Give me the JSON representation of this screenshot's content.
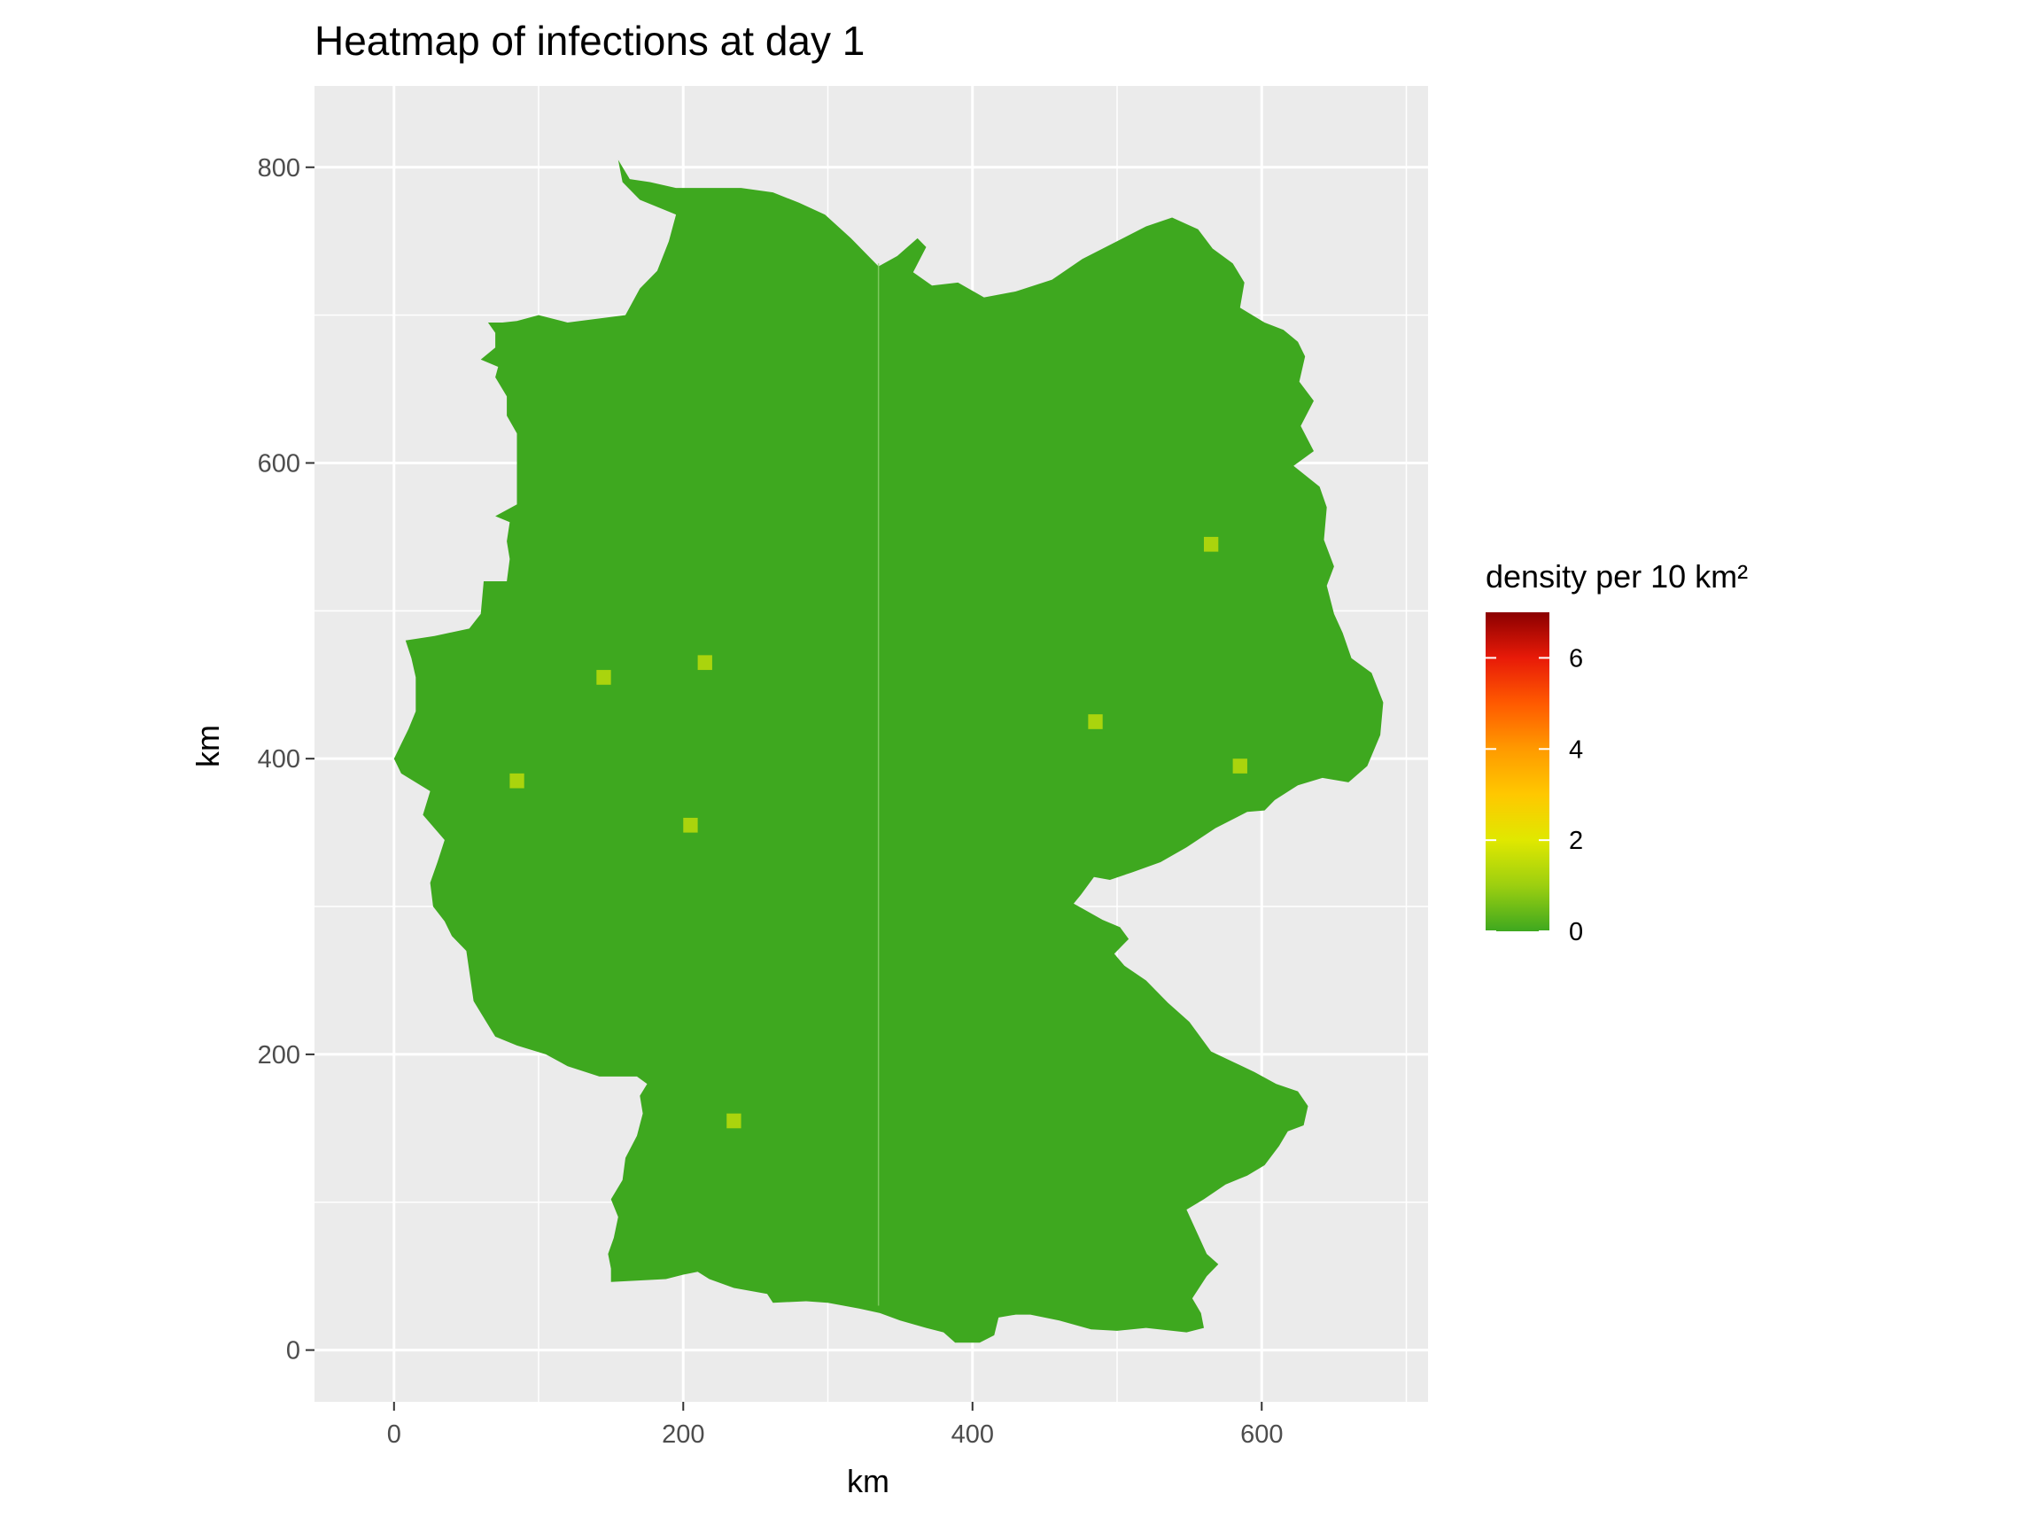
{
  "chart_data": {
    "type": "heatmap",
    "title": "Heatmap of infections at day 1",
    "xlabel": "km",
    "ylabel": "km",
    "xlim": [
      -55,
      715
    ],
    "ylim": [
      -35,
      855
    ],
    "x_ticks": [
      0,
      200,
      400,
      600
    ],
    "y_ticks": [
      0,
      200,
      400,
      600,
      800
    ],
    "x_minor": [
      100,
      300,
      500,
      700
    ],
    "y_minor": [
      100,
      300,
      500,
      700
    ],
    "grid": true,
    "background_color": "#ebebeb",
    "grid_color": "#ffffff",
    "base_color": "#3ea81f",
    "region_outline": [
      [
        155,
        805
      ],
      [
        163,
        792
      ],
      [
        177,
        790
      ],
      [
        195,
        786
      ],
      [
        240,
        786
      ],
      [
        262,
        783
      ],
      [
        280,
        776
      ],
      [
        298,
        768
      ],
      [
        316,
        752
      ],
      [
        335,
        733
      ],
      [
        348,
        740
      ],
      [
        362,
        752
      ],
      [
        368,
        746
      ],
      [
        359,
        729
      ],
      [
        372,
        720
      ],
      [
        390,
        722
      ],
      [
        408,
        712
      ],
      [
        430,
        716
      ],
      [
        455,
        724
      ],
      [
        476,
        738
      ],
      [
        500,
        750
      ],
      [
        520,
        760
      ],
      [
        538,
        766
      ],
      [
        556,
        758
      ],
      [
        566,
        745
      ],
      [
        580,
        735
      ],
      [
        588,
        722
      ],
      [
        585,
        705
      ],
      [
        602,
        695
      ],
      [
        615,
        690
      ],
      [
        625,
        682
      ],
      [
        630,
        672
      ],
      [
        626,
        655
      ],
      [
        636,
        642
      ],
      [
        627,
        625
      ],
      [
        636,
        608
      ],
      [
        622,
        598
      ],
      [
        640,
        584
      ],
      [
        645,
        570
      ],
      [
        643,
        548
      ],
      [
        650,
        530
      ],
      [
        645,
        517
      ],
      [
        650,
        498
      ],
      [
        656,
        485
      ],
      [
        662,
        468
      ],
      [
        676,
        458
      ],
      [
        684,
        438
      ],
      [
        682,
        416
      ],
      [
        673,
        395
      ],
      [
        660,
        384
      ],
      [
        642,
        387
      ],
      [
        625,
        382
      ],
      [
        609,
        372
      ],
      [
        602,
        365
      ],
      [
        590,
        364
      ],
      [
        568,
        353
      ],
      [
        548,
        340
      ],
      [
        530,
        330
      ],
      [
        510,
        323
      ],
      [
        495,
        318
      ],
      [
        484,
        320
      ],
      [
        475,
        308
      ],
      [
        470,
        302
      ],
      [
        490,
        291
      ],
      [
        502,
        286
      ],
      [
        508,
        278
      ],
      [
        498,
        268
      ],
      [
        505,
        260
      ],
      [
        520,
        250
      ],
      [
        535,
        235
      ],
      [
        550,
        222
      ],
      [
        565,
        202
      ],
      [
        580,
        195
      ],
      [
        595,
        188
      ],
      [
        610,
        180
      ],
      [
        625,
        175
      ],
      [
        632,
        165
      ],
      [
        629,
        152
      ],
      [
        618,
        148
      ],
      [
        612,
        138
      ],
      [
        602,
        125
      ],
      [
        590,
        118
      ],
      [
        575,
        112
      ],
      [
        560,
        102
      ],
      [
        548,
        95
      ],
      [
        555,
        80
      ],
      [
        562,
        65
      ],
      [
        570,
        58
      ],
      [
        562,
        50
      ],
      [
        552,
        35
      ],
      [
        558,
        25
      ],
      [
        560,
        15
      ],
      [
        548,
        12
      ],
      [
        520,
        15
      ],
      [
        500,
        13
      ],
      [
        482,
        14
      ],
      [
        460,
        20
      ],
      [
        440,
        24
      ],
      [
        430,
        24
      ],
      [
        418,
        22
      ],
      [
        415,
        10
      ],
      [
        405,
        5
      ],
      [
        388,
        5
      ],
      [
        380,
        12
      ],
      [
        368,
        15
      ],
      [
        350,
        20
      ],
      [
        336,
        25
      ],
      [
        322,
        28
      ],
      [
        300,
        32
      ],
      [
        285,
        33
      ],
      [
        262,
        32
      ],
      [
        258,
        38
      ],
      [
        235,
        42
      ],
      [
        218,
        48
      ],
      [
        210,
        53
      ],
      [
        200,
        51
      ],
      [
        188,
        48
      ],
      [
        150,
        46
      ],
      [
        150,
        55
      ],
      [
        148,
        65
      ],
      [
        152,
        76
      ],
      [
        155,
        90
      ],
      [
        150,
        102
      ],
      [
        158,
        115
      ],
      [
        160,
        130
      ],
      [
        168,
        145
      ],
      [
        172,
        160
      ],
      [
        170,
        172
      ],
      [
        175,
        180
      ],
      [
        168,
        185
      ],
      [
        142,
        185
      ],
      [
        120,
        192
      ],
      [
        105,
        200
      ],
      [
        85,
        206
      ],
      [
        70,
        212
      ],
      [
        55,
        236
      ],
      [
        50,
        270
      ],
      [
        40,
        280
      ],
      [
        35,
        290
      ],
      [
        27,
        300
      ],
      [
        25,
        316
      ],
      [
        30,
        330
      ],
      [
        35,
        345
      ],
      [
        20,
        362
      ],
      [
        25,
        378
      ],
      [
        5,
        390
      ],
      [
        0,
        400
      ],
      [
        5,
        410
      ],
      [
        10,
        420
      ],
      [
        15,
        432
      ],
      [
        15,
        455
      ],
      [
        12,
        468
      ],
      [
        8,
        480
      ],
      [
        28,
        483
      ],
      [
        52,
        488
      ],
      [
        60,
        498
      ],
      [
        62,
        520
      ],
      [
        78,
        520
      ],
      [
        80,
        535
      ],
      [
        78,
        547
      ],
      [
        80,
        560
      ],
      [
        70,
        564
      ],
      [
        85,
        572
      ],
      [
        85,
        595
      ],
      [
        85,
        620
      ],
      [
        78,
        632
      ],
      [
        78,
        645
      ],
      [
        70,
        658
      ],
      [
        72,
        665
      ],
      [
        60,
        670
      ],
      [
        70,
        678
      ],
      [
        70,
        688
      ],
      [
        65,
        695
      ],
      [
        75,
        695
      ],
      [
        85,
        696
      ],
      [
        100,
        700
      ],
      [
        120,
        695
      ],
      [
        160,
        700
      ],
      [
        170,
        718
      ],
      [
        182,
        730
      ],
      [
        190,
        750
      ],
      [
        195,
        768
      ],
      [
        170,
        778
      ],
      [
        158,
        790
      ],
      [
        155,
        805
      ]
    ],
    "hotspots": [
      {
        "x": 565,
        "y": 545,
        "value": 1.2
      },
      {
        "x": 215,
        "y": 465,
        "value": 1.2
      },
      {
        "x": 145,
        "y": 455,
        "value": 1.2
      },
      {
        "x": 485,
        "y": 425,
        "value": 1.2
      },
      {
        "x": 585,
        "y": 395,
        "value": 1.2
      },
      {
        "x": 85,
        "y": 385,
        "value": 1.2
      },
      {
        "x": 205,
        "y": 355,
        "value": 1.2
      },
      {
        "x": 235,
        "y": 155,
        "value": 1.2
      }
    ],
    "legend": {
      "title": "density per 10 km²",
      "position": "right",
      "min": 0,
      "max": 7,
      "breaks": [
        0,
        2,
        4,
        6
      ],
      "gradient": [
        {
          "value": 0,
          "color": "#3ea81f"
        },
        {
          "value": 1,
          "color": "#9ccf10"
        },
        {
          "value": 2,
          "color": "#e0e800"
        },
        {
          "value": 3,
          "color": "#ffc800"
        },
        {
          "value": 4,
          "color": "#ff9a00"
        },
        {
          "value": 5,
          "color": "#ff5a00"
        },
        {
          "value": 6,
          "color": "#e81a08"
        },
        {
          "value": 7,
          "color": "#8b0000"
        }
      ]
    }
  }
}
